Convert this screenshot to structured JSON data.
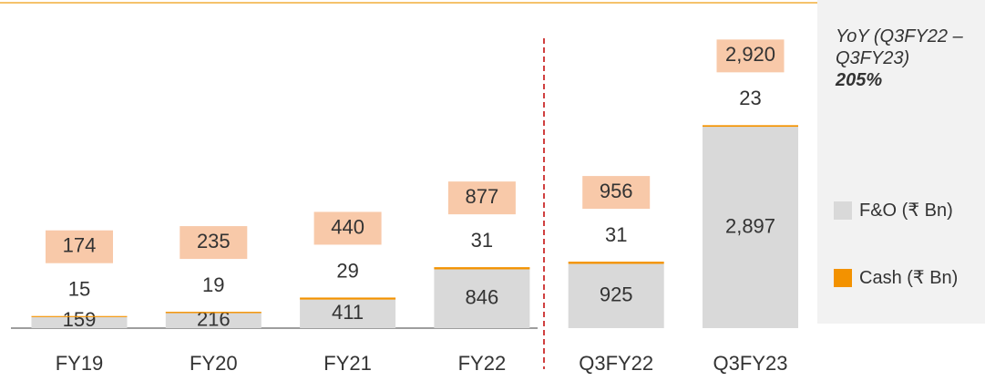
{
  "chart_data": {
    "type": "stacked_bar",
    "categories": [
      "FY19",
      "FY20",
      "FY21",
      "FY22",
      "Q3FY22",
      "Q3FY23"
    ],
    "series": [
      {
        "name": "F&O (₹ Bn)",
        "color": "#d9d9d9",
        "values": [
          159,
          216,
          411,
          846,
          925,
          2897
        ],
        "value_labels": [
          "159",
          "216",
          "411",
          "846",
          "925",
          "2,897"
        ]
      },
      {
        "name": "Cash (₹ Bn)",
        "color": "#f39200",
        "values": [
          15,
          19,
          29,
          31,
          31,
          23
        ]
      }
    ],
    "totals": {
      "values": [
        174,
        235,
        440,
        877,
        956,
        2920
      ],
      "value_labels": [
        "174",
        "235",
        "440",
        "877",
        "956",
        "2,920"
      ],
      "color": "#f8c9a9"
    },
    "annotation": {
      "text": "YoY (Q3FY22 – Q3FY23)",
      "value": "205%"
    },
    "ylim": [
      0,
      4000
    ]
  }
}
